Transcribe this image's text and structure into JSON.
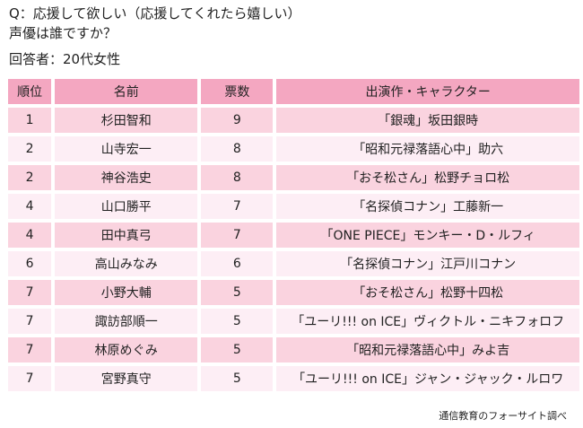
{
  "question": {
    "line1": "Q：応援して欲しい（応援してくれたら嬉しい）",
    "line2": "声優は誰ですか？"
  },
  "respondents": "回答者：20代女性",
  "table": {
    "headers": [
      "順位",
      "名前",
      "票数",
      "出演作・キャラクター"
    ],
    "rows": [
      {
        "rank": "1",
        "name": "杉田智和",
        "votes": "9",
        "work": "「銀魂」坂田銀時"
      },
      {
        "rank": "2",
        "name": "山寺宏一",
        "votes": "8",
        "work": "「昭和元禄落語心中」助六"
      },
      {
        "rank": "2",
        "name": "神谷浩史",
        "votes": "8",
        "work": "「おそ松さん」松野チョロ松"
      },
      {
        "rank": "4",
        "name": "山口勝平",
        "votes": "7",
        "work": "「名探偵コナン」工藤新一"
      },
      {
        "rank": "4",
        "name": "田中真弓",
        "votes": "7",
        "work": "「ONE PIECE」モンキー・D・ルフィ"
      },
      {
        "rank": "6",
        "name": "高山みなみ",
        "votes": "6",
        "work": "「名探偵コナン」江戸川コナン"
      },
      {
        "rank": "7",
        "name": "小野大輔",
        "votes": "5",
        "work": "「おそ松さん」松野十四松"
      },
      {
        "rank": "7",
        "name": "諏訪部順一",
        "votes": "5",
        "work": "「ユーリ!!! on ICE」ヴィクトル・ニキフォロフ"
      },
      {
        "rank": "7",
        "name": "林原めぐみ",
        "votes": "5",
        "work": "「昭和元禄落語心中」みよ吉"
      },
      {
        "rank": "7",
        "name": "宮野真守",
        "votes": "5",
        "work": "「ユーリ!!! on ICE」ジャン・ジャック・ルロワ"
      }
    ]
  },
  "credit": "通信教育のフォーサイト調べ",
  "colors": {
    "header": "#f4a7c1",
    "row_odd": "#fad3df",
    "row_even": "#fdeef5"
  }
}
